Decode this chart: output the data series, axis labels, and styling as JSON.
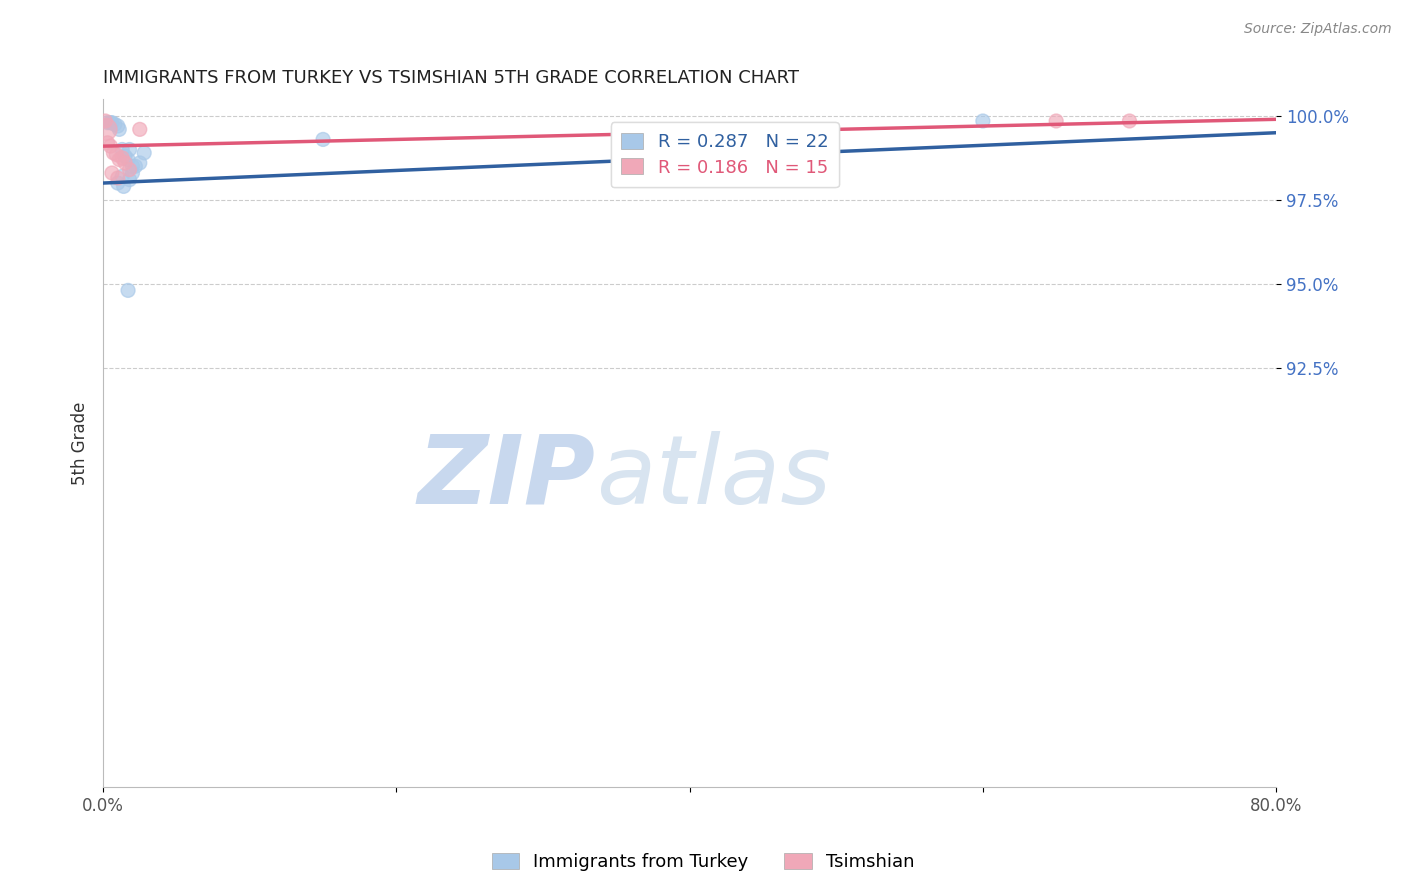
{
  "title": "IMMIGRANTS FROM TURKEY VS TSIMSHIAN 5TH GRADE CORRELATION CHART",
  "source": "Source: ZipAtlas.com",
  "ylabel": "5th Grade",
  "xlim": [
    0.0,
    80.0
  ],
  "ylim": [
    80.0,
    100.5
  ],
  "yticks": [
    92.5,
    95.0,
    97.5,
    100.0
  ],
  "ytick_labels": [
    "92.5%",
    "95.0%",
    "97.5%",
    "100.0%"
  ],
  "xticks": [
    0.0,
    20.0,
    40.0,
    60.0,
    80.0
  ],
  "xtick_labels": [
    "0.0%",
    "",
    "",
    "",
    "80.0%"
  ],
  "legend_blue_label": "Immigrants from Turkey",
  "legend_pink_label": "Tsimshian",
  "r_blue": 0.287,
  "n_blue": 22,
  "r_pink": 0.186,
  "n_pink": 15,
  "blue_color": "#A8C8E8",
  "pink_color": "#F0A8B8",
  "blue_line_color": "#3060A0",
  "pink_line_color": "#E05878",
  "watermark_zip": "ZIP",
  "watermark_atlas": "atlas",
  "blue_scatter_x": [
    0.3,
    0.5,
    0.6,
    0.8,
    1.0,
    1.1,
    1.3,
    1.5,
    1.7,
    1.8,
    2.0,
    2.2,
    2.5,
    2.0,
    1.3,
    1.0,
    1.8,
    1.4,
    2.8,
    1.7,
    60.0,
    15.0
  ],
  "blue_scatter_y": [
    99.8,
    99.8,
    99.8,
    99.75,
    99.7,
    99.6,
    99.0,
    98.8,
    98.7,
    99.0,
    98.5,
    98.5,
    98.6,
    98.3,
    98.2,
    98.0,
    98.1,
    97.9,
    98.9,
    94.8,
    99.85,
    99.3
  ],
  "blue_scatter_sizes": [
    100,
    100,
    100,
    100,
    100,
    100,
    100,
    100,
    100,
    100,
    100,
    100,
    100,
    100,
    100,
    100,
    100,
    100,
    100,
    100,
    100,
    100
  ],
  "pink_scatter_x": [
    0.15,
    0.3,
    0.5,
    0.7,
    0.9,
    1.1,
    1.3,
    1.5,
    1.8,
    2.5,
    0.2,
    0.6,
    1.0,
    65.0,
    70.0
  ],
  "pink_scatter_y": [
    99.85,
    99.2,
    99.1,
    98.9,
    98.85,
    98.7,
    98.75,
    98.6,
    98.4,
    99.6,
    99.6,
    98.3,
    98.15,
    99.85,
    99.85
  ],
  "pink_scatter_sizes": [
    100,
    100,
    100,
    100,
    100,
    100,
    100,
    100,
    100,
    100,
    250,
    100,
    100,
    100,
    100
  ],
  "blue_trend_x": [
    0.0,
    80.0
  ],
  "blue_trend_y": [
    98.0,
    99.5
  ],
  "pink_trend_x": [
    0.0,
    80.0
  ],
  "pink_trend_y": [
    99.1,
    99.9
  ]
}
